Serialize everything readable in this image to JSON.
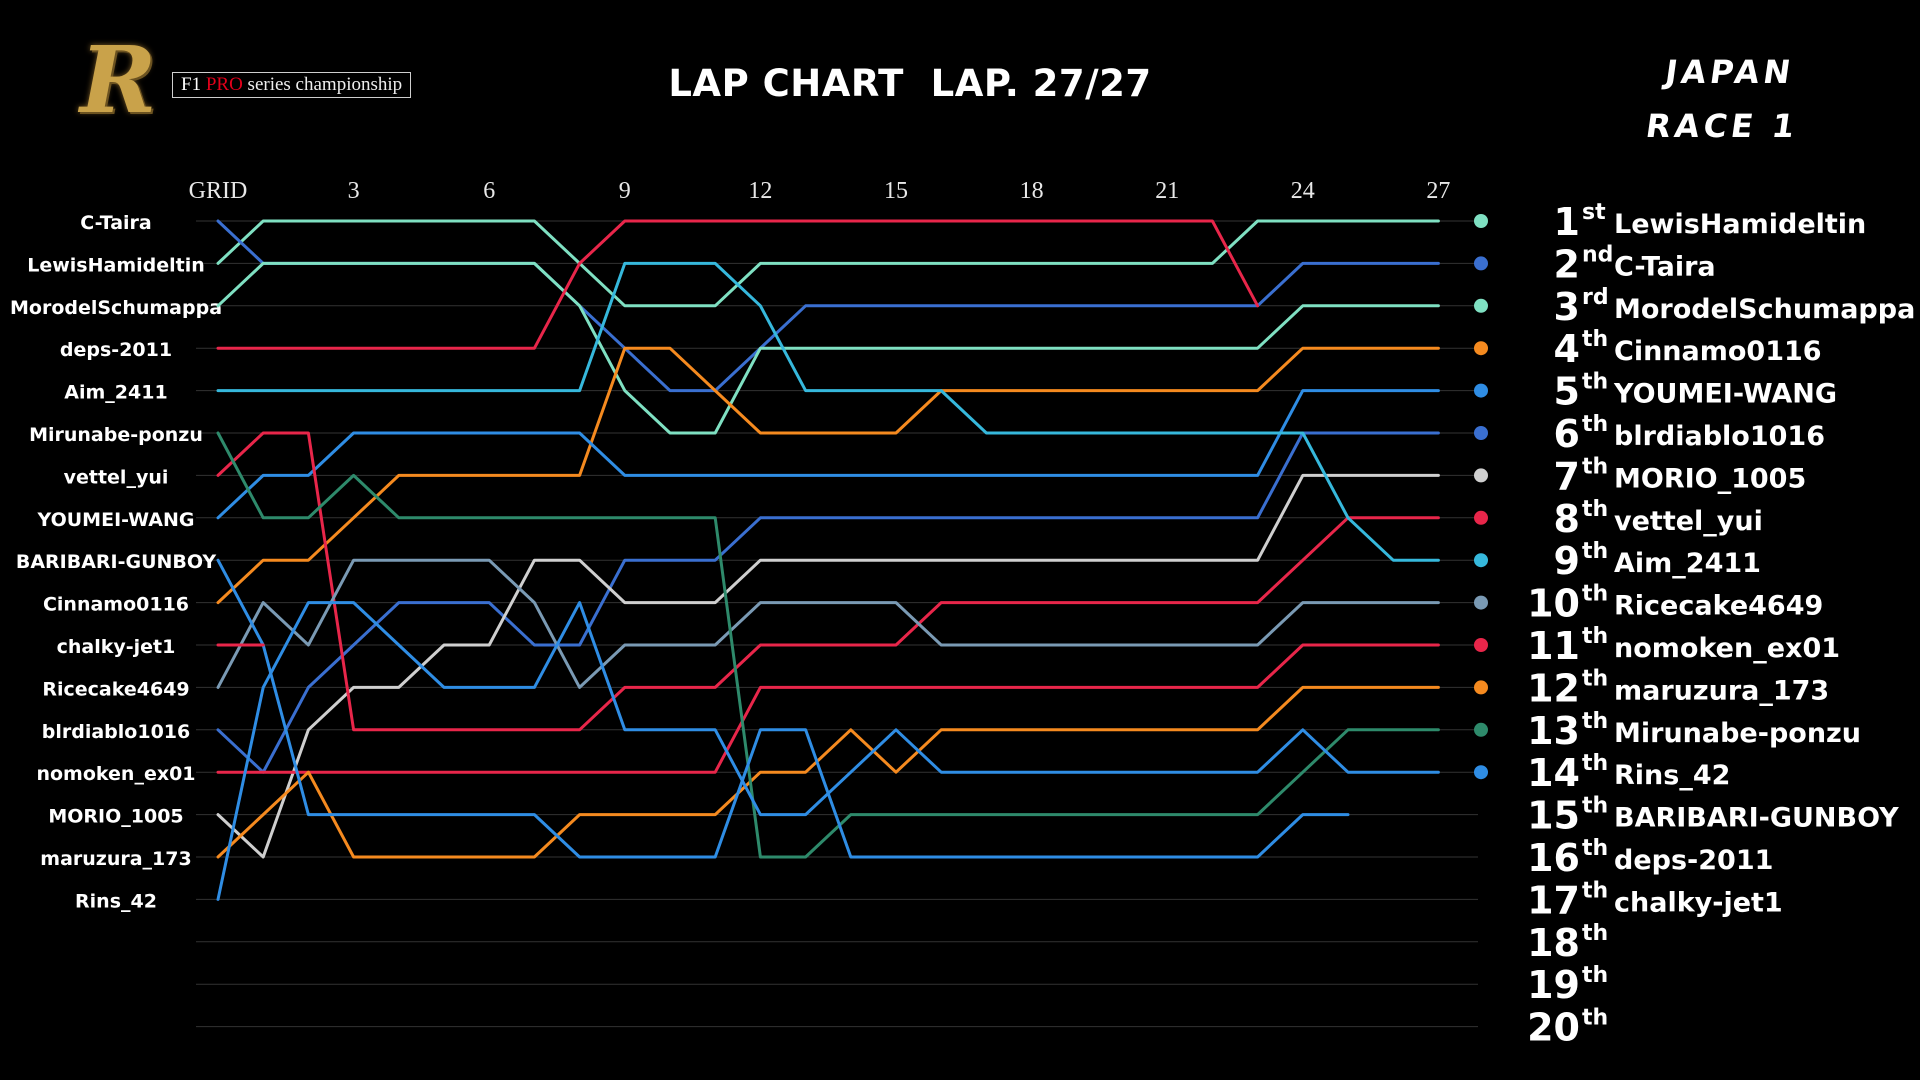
{
  "header": {
    "logo_letter": "R",
    "logo_f1": "F1",
    "logo_pro": "PRO",
    "logo_rest": "series championship",
    "title": "LAP CHART  LAP. 27/27",
    "race_line1": "JAPAN",
    "race_line2": "RACE 1"
  },
  "colors": {
    "background": "#000000",
    "gridline": "#333333",
    "marker_gold_logo": "#c9a24a"
  },
  "chart_data": {
    "type": "line",
    "title": "LAP CHART  LAP. 27/27",
    "x_ticks": [
      "GRID",
      "3",
      "6",
      "9",
      "12",
      "15",
      "18",
      "21",
      "24",
      "27"
    ],
    "x_tick_laps": [
      0,
      3,
      6,
      9,
      12,
      15,
      18,
      21,
      24,
      27
    ],
    "laps_total": 27,
    "y_range": [
      1,
      20
    ],
    "grid_lines": true,
    "grid_order": [
      "C-Taira",
      "LewisHamideltin",
      "MorodelSchumappa",
      "deps-2011",
      "Aim_2411",
      "Mirunabe-ponzu",
      "vettel_yui",
      "YOUMEI-WANG",
      "BARIBARI-GUNBOY",
      "Cinnamo0116",
      "chalky-jet1",
      "Ricecake4649",
      "blrdiablo1016",
      "nomoken_ex01",
      "MORIO_1005",
      "maruzura_173",
      "Rins_42"
    ],
    "positions": [
      {
        "pos": "1",
        "suffix": "st",
        "driver": "LewisHamideltin"
      },
      {
        "pos": "2",
        "suffix": "nd",
        "driver": "C-Taira"
      },
      {
        "pos": "3",
        "suffix": "rd",
        "driver": "MorodelSchumappa"
      },
      {
        "pos": "4",
        "suffix": "th",
        "driver": "Cinnamo0116"
      },
      {
        "pos": "5",
        "suffix": "th",
        "driver": "YOUMEI-WANG"
      },
      {
        "pos": "6",
        "suffix": "th",
        "driver": "blrdiablo1016"
      },
      {
        "pos": "7",
        "suffix": "th",
        "driver": "MORIO_1005"
      },
      {
        "pos": "8",
        "suffix": "th",
        "driver": "vettel_yui"
      },
      {
        "pos": "9",
        "suffix": "th",
        "driver": "Aim_2411"
      },
      {
        "pos": "10",
        "suffix": "th",
        "driver": "Ricecake4649"
      },
      {
        "pos": "11",
        "suffix": "th",
        "driver": "nomoken_ex01"
      },
      {
        "pos": "12",
        "suffix": "th",
        "driver": "maruzura_173"
      },
      {
        "pos": "13",
        "suffix": "th",
        "driver": "Mirunabe-ponzu"
      },
      {
        "pos": "14",
        "suffix": "th",
        "driver": "Rins_42"
      },
      {
        "pos": "15",
        "suffix": "th",
        "driver": "BARIBARI-GUNBOY"
      },
      {
        "pos": "16",
        "suffix": "th",
        "driver": "deps-2011"
      },
      {
        "pos": "17",
        "suffix": "th",
        "driver": "chalky-jet1"
      },
      {
        "pos": "18",
        "suffix": "th",
        "driver": ""
      },
      {
        "pos": "19",
        "suffix": "th",
        "driver": ""
      },
      {
        "pos": "20",
        "suffix": "th",
        "driver": ""
      }
    ],
    "series": [
      {
        "color": "#7fe0c2",
        "values": [
          2,
          1,
          1,
          1,
          1,
          1,
          1,
          1,
          2,
          3,
          3,
          3,
          2,
          2,
          2,
          2,
          2,
          2,
          2,
          2,
          2,
          2,
          2,
          1,
          1,
          1,
          1,
          1
        ]
      },
      {
        "color": "#3a6fd0",
        "values": [
          1,
          2,
          2,
          2,
          2,
          2,
          2,
          2,
          3,
          4,
          5,
          5,
          4,
          3,
          3,
          3,
          3,
          3,
          3,
          3,
          3,
          3,
          3,
          3,
          2,
          2,
          2,
          2
        ]
      },
      {
        "color": "#7fe0c2",
        "values": [
          3,
          2,
          2,
          2,
          2,
          2,
          2,
          2,
          3,
          5,
          6,
          6,
          4,
          4,
          4,
          4,
          4,
          4,
          4,
          4,
          4,
          4,
          4,
          4,
          3,
          3,
          3,
          3
        ]
      },
      {
        "color": "#f58a1f",
        "values": [
          10,
          9,
          9,
          8,
          7,
          7,
          7,
          7,
          7,
          4,
          4,
          5,
          6,
          6,
          6,
          6,
          5,
          5,
          5,
          5,
          5,
          5,
          5,
          5,
          4,
          4,
          4,
          4
        ]
      },
      {
        "color": "#2f8de4",
        "values": [
          8,
          7,
          7,
          6,
          6,
          6,
          6,
          6,
          6,
          7,
          7,
          7,
          7,
          7,
          7,
          7,
          7,
          7,
          7,
          7,
          7,
          7,
          7,
          7,
          5,
          5,
          5,
          5
        ]
      },
      {
        "color": "#3a6fd0",
        "values": [
          13,
          14,
          12,
          11,
          10,
          10,
          10,
          11,
          11,
          9,
          9,
          9,
          8,
          8,
          8,
          8,
          8,
          8,
          8,
          8,
          8,
          8,
          8,
          8,
          6,
          6,
          6,
          6
        ]
      },
      {
        "color": "#cfcfcf",
        "values": [
          15,
          16,
          13,
          12,
          12,
          11,
          11,
          9,
          9,
          10,
          10,
          10,
          9,
          9,
          9,
          9,
          9,
          9,
          9,
          9,
          9,
          9,
          9,
          9,
          7,
          7,
          7,
          7
        ]
      },
      {
        "color": "#e8264a",
        "values": [
          7,
          6,
          6,
          13,
          13,
          13,
          13,
          13,
          13,
          12,
          12,
          12,
          11,
          11,
          11,
          11,
          10,
          10,
          10,
          10,
          10,
          10,
          10,
          10,
          9,
          8,
          8,
          8
        ]
      },
      {
        "color": "#36b8dc",
        "values": [
          5,
          5,
          5,
          5,
          5,
          5,
          5,
          5,
          5,
          2,
          2,
          2,
          3,
          5,
          5,
          5,
          5,
          6,
          6,
          6,
          6,
          6,
          6,
          6,
          6,
          8,
          9,
          9
        ]
      },
      {
        "color": "#7a9ab4",
        "values": [
          12,
          10,
          11,
          9,
          9,
          9,
          9,
          10,
          12,
          11,
          11,
          11,
          10,
          10,
          10,
          10,
          11,
          11,
          11,
          11,
          11,
          11,
          11,
          11,
          10,
          10,
          10,
          10
        ]
      },
      {
        "color": "#e8264a",
        "values": [
          14,
          14,
          14,
          14,
          14,
          14,
          14,
          14,
          14,
          14,
          14,
          14,
          12,
          12,
          12,
          12,
          12,
          12,
          12,
          12,
          12,
          12,
          12,
          12,
          11,
          11,
          11,
          11
        ]
      },
      {
        "color": "#f58a1f",
        "values": [
          16,
          15,
          14,
          16,
          16,
          16,
          16,
          16,
          15,
          15,
          15,
          15,
          14,
          14,
          13,
          14,
          13,
          13,
          13,
          13,
          13,
          13,
          13,
          13,
          12,
          12,
          12,
          12
        ]
      },
      {
        "color": "#2e8a6b",
        "values": [
          6,
          8,
          8,
          7,
          8,
          8,
          8,
          8,
          8,
          8,
          8,
          8,
          16,
          16,
          15,
          15,
          15,
          15,
          15,
          15,
          15,
          15,
          15,
          15,
          14,
          13,
          13,
          13
        ]
      },
      {
        "color": "#2f8de4",
        "values": [
          17,
          12,
          10,
          10,
          11,
          12,
          12,
          12,
          10,
          13,
          13,
          13,
          15,
          15,
          14,
          13,
          14,
          14,
          14,
          14,
          14,
          14,
          14,
          14,
          13,
          14,
          14,
          14
        ]
      },
      {
        "color": "#2f8de4",
        "values": [
          9,
          11,
          15,
          15,
          15,
          15,
          15,
          15,
          16,
          16,
          16,
          16,
          13,
          13,
          16,
          16,
          16,
          16,
          16,
          16,
          16,
          16,
          16,
          16,
          15,
          15
        ]
      },
      {
        "color": "#e8264a",
        "values": [
          4,
          4,
          4,
          4,
          4,
          4,
          4,
          4,
          2,
          1,
          1,
          1,
          1,
          1,
          1,
          1,
          1,
          1,
          1,
          1,
          1,
          1,
          1,
          3
        ]
      },
      {
        "color": "#e8264a",
        "values": [
          11,
          11
        ]
      }
    ]
  }
}
